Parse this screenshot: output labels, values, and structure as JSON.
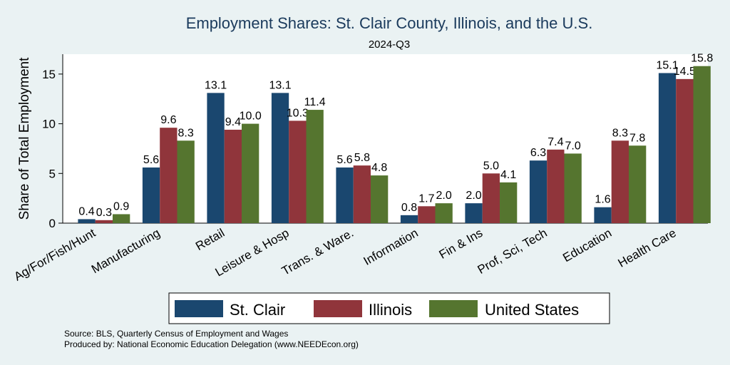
{
  "chart_data": {
    "type": "bar",
    "title": "Employment Shares: St. Clair County, Illinois, and the U.S.",
    "subtitle": "2024-Q3",
    "xlabel": "",
    "ylabel": "Share of Total Employment",
    "ylim": [
      0,
      17
    ],
    "yticks": [
      0,
      5,
      10,
      15
    ],
    "grid": false,
    "legend_position": "bottom",
    "categories": [
      "Ag/For/Fish/Hunt",
      "Manufacturing",
      "Retail",
      "Leisure & Hosp",
      "Trans. & Ware.",
      "Information",
      "Fin & Ins",
      "Prof, Sci, Tech",
      "Education",
      "Health Care"
    ],
    "series": [
      {
        "name": "St. Clair",
        "color": "#1a476f",
        "values": [
          0.4,
          5.6,
          13.1,
          13.1,
          5.6,
          0.8,
          2.0,
          6.3,
          1.6,
          15.1
        ],
        "labels": [
          "0.4",
          "5.6",
          "13.1",
          "13.1",
          "5.6",
          "0.8",
          "2.0",
          "6.3",
          "1.6",
          "15.1"
        ]
      },
      {
        "name": "Illinois",
        "color": "#90353b",
        "values": [
          0.3,
          9.6,
          9.4,
          10.3,
          5.8,
          1.7,
          5.0,
          7.4,
          8.3,
          14.5
        ],
        "labels": [
          "0.3",
          "9.6",
          "9.4",
          "10.3",
          "5.8",
          "1.7",
          "5.0",
          "7.4",
          "8.3",
          "14.5"
        ]
      },
      {
        "name": "United States",
        "color": "#55752f",
        "values": [
          0.9,
          8.3,
          10.0,
          11.4,
          4.8,
          2.0,
          4.1,
          7.0,
          7.8,
          15.8
        ],
        "labels": [
          "0.9",
          "8.3",
          "10.0",
          "11.4",
          "4.8",
          "2.0",
          "4.1",
          "7.0",
          "7.8",
          "15.8"
        ]
      }
    ]
  },
  "notes": {
    "source": "Source: BLS, Quarterly Census of Employment and Wages",
    "produced_by": "Produced by: National Economic Education Delegation (www.NEEDEcon.org)"
  }
}
